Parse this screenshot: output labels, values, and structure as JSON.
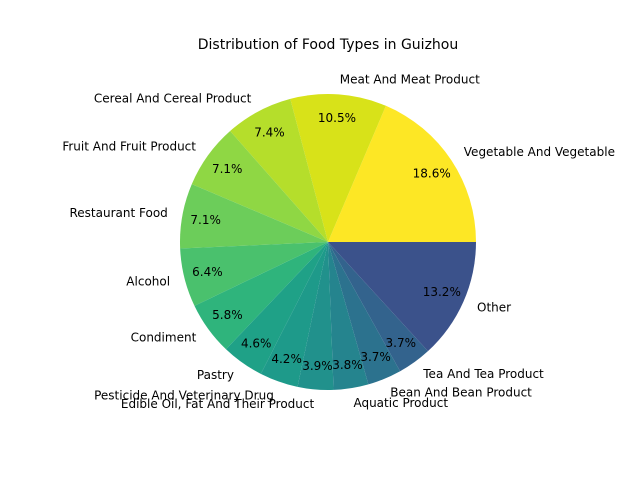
{
  "chart_data": {
    "type": "pie",
    "title": "Distribution of Food Types in Guizhou",
    "start_angle": 0,
    "direction": "counterclockwise",
    "slices": [
      {
        "label": "Vegetable And Vegetable",
        "value": 18.6,
        "pct_label": "18.6%",
        "color": "#fde725"
      },
      {
        "label": "Meat And Meat Product",
        "value": 10.5,
        "pct_label": "10.5%",
        "color": "#d8e219"
      },
      {
        "label": "Cereal And Cereal Product",
        "value": 7.4,
        "pct_label": "7.4%",
        "color": "#b5de2b"
      },
      {
        "label": "Fruit And Fruit Product",
        "value": 7.1,
        "pct_label": "7.1%",
        "color": "#8fd744"
      },
      {
        "label": "Restaurant Food",
        "value": 7.1,
        "pct_label": "7.1%",
        "color": "#6ccd5a"
      },
      {
        "label": "Alcohol",
        "value": 6.4,
        "pct_label": "6.4%",
        "color": "#4ac16d"
      },
      {
        "label": "Condiment",
        "value": 5.8,
        "pct_label": "5.8%",
        "color": "#2fb47c"
      },
      {
        "label": "Pastry",
        "value": 4.6,
        "pct_label": "4.6%",
        "color": "#1fa187"
      },
      {
        "label": "Pesticide And Veterinary Drug",
        "value": 4.2,
        "pct_label": "4.2%",
        "color": "#1e9a8a"
      },
      {
        "label": "Edible Oil, Fat And Their Product",
        "value": 3.9,
        "pct_label": "3.9%",
        "color": "#21918c"
      },
      {
        "label": "Aquatic Product",
        "value": 3.8,
        "pct_label": "3.8%",
        "color": "#25848e"
      },
      {
        "label": "Bean And Bean Product",
        "value": 3.7,
        "pct_label": "3.7%",
        "color": "#2c728e"
      },
      {
        "label": "Tea And Tea Product",
        "value": 3.7,
        "pct_label": "3.7%",
        "color": "#33638d"
      },
      {
        "label": "Other",
        "value": 13.2,
        "pct_label": "13.2%",
        "color": "#3b528b"
      }
    ]
  }
}
